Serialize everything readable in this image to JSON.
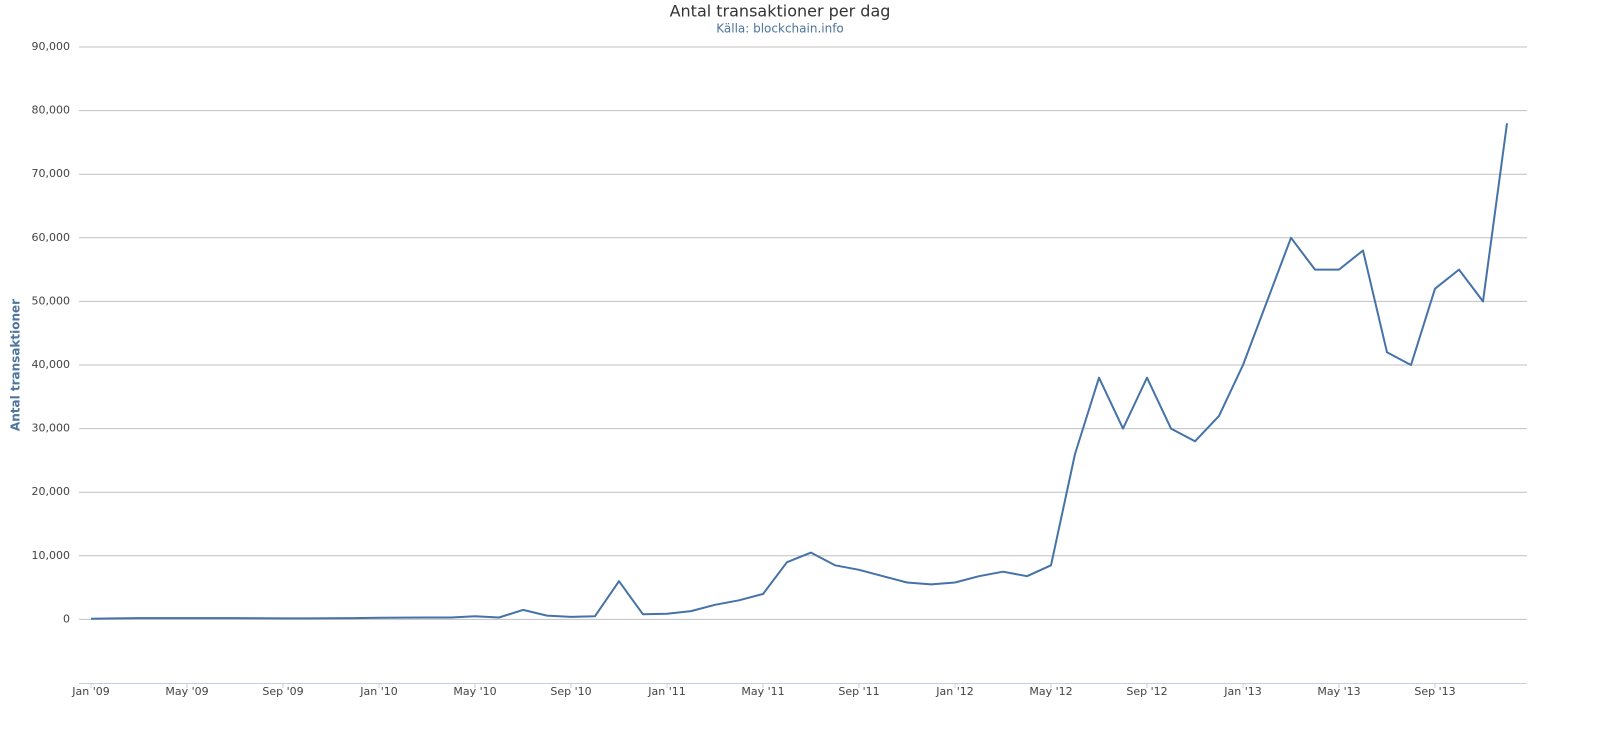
{
  "chart_data": {
    "type": "line",
    "title": "Antal transaktioner per dag",
    "subtitle": "Källa: blockchain.info",
    "y_label": "Antal transaktioner",
    "x": [
      "2009-01",
      "2009-02",
      "2009-03",
      "2009-04",
      "2009-05",
      "2009-06",
      "2009-07",
      "2009-08",
      "2009-09",
      "2009-10",
      "2009-11",
      "2009-12",
      "2010-01",
      "2010-02",
      "2010-03",
      "2010-04",
      "2010-05",
      "2010-06",
      "2010-07",
      "2010-08",
      "2010-09",
      "2010-10",
      "2010-11",
      "2010-12",
      "2011-01",
      "2011-02",
      "2011-03",
      "2011-04",
      "2011-05",
      "2011-06",
      "2011-07",
      "2011-08",
      "2011-09",
      "2011-10",
      "2011-11",
      "2011-12",
      "2012-01",
      "2012-02",
      "2012-03",
      "2012-04",
      "2012-05",
      "2012-06",
      "2012-07",
      "2012-08",
      "2012-09",
      "2012-10",
      "2012-11",
      "2012-12",
      "2013-01",
      "2013-02",
      "2013-03",
      "2013-04",
      "2013-05",
      "2013-06",
      "2013-07",
      "2013-08",
      "2013-09",
      "2013-10",
      "2013-11",
      "2013-12"
    ],
    "series": [
      {
        "name": "Antal transaktioner",
        "color": "#4572a7",
        "values": [
          100,
          150,
          200,
          200,
          200,
          200,
          200,
          180,
          150,
          150,
          170,
          200,
          250,
          280,
          300,
          300,
          500,
          300,
          1500,
          600,
          400,
          500,
          6000,
          800,
          900,
          1300,
          2300,
          3000,
          4000,
          9000,
          10500,
          8500,
          7800,
          6800,
          5800,
          5500,
          5800,
          6800,
          7500,
          6800,
          8500,
          26000,
          38000,
          30000,
          38000,
          30000,
          28000,
          32000,
          40000,
          50000,
          60000,
          55000,
          55000,
          58000,
          42000,
          40000,
          52000,
          55000,
          50000,
          78000
        ]
      }
    ],
    "xlim": [
      "2009-01",
      "2013-12"
    ],
    "xticks": [
      {
        "value": "2009-01",
        "label": "Jan '09"
      },
      {
        "value": "2009-05",
        "label": "May '09"
      },
      {
        "value": "2009-09",
        "label": "Sep '09"
      },
      {
        "value": "2010-01",
        "label": "Jan '10"
      },
      {
        "value": "2010-05",
        "label": "May '10"
      },
      {
        "value": "2010-09",
        "label": "Sep '10"
      },
      {
        "value": "2011-01",
        "label": "Jan '11"
      },
      {
        "value": "2011-05",
        "label": "May '11"
      },
      {
        "value": "2011-09",
        "label": "Sep '11"
      },
      {
        "value": "2012-01",
        "label": "Jan '12"
      },
      {
        "value": "2012-05",
        "label": "May '12"
      },
      {
        "value": "2012-09",
        "label": "Sep '12"
      },
      {
        "value": "2013-01",
        "label": "Jan '13"
      },
      {
        "value": "2013-05",
        "label": "May '13"
      },
      {
        "value": "2013-09",
        "label": "Sep '13"
      }
    ],
    "ylim": [
      -10000,
      90000
    ],
    "yticks": [
      0,
      {
        "value": 10000,
        "label": "10,000"
      },
      {
        "value": 20000,
        "label": "20,000"
      },
      {
        "value": 30000,
        "label": "30,000"
      },
      {
        "value": 40000,
        "label": "40,000"
      },
      {
        "value": 50000,
        "label": "50,000"
      },
      {
        "value": 60000,
        "label": "60,000"
      },
      {
        "value": 70000,
        "label": "70,000"
      },
      {
        "value": 80000,
        "label": "80,000"
      },
      {
        "value": 90000,
        "label": "90,000"
      }
    ],
    "grid": true
  }
}
